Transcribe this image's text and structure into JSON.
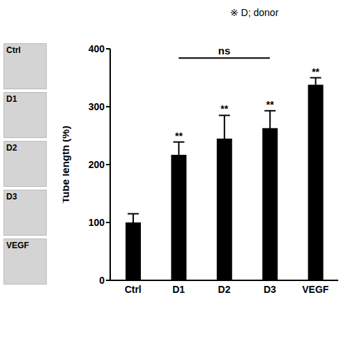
{
  "chart_data": {
    "type": "bar",
    "categories": [
      "Ctrl",
      "D1",
      "D2",
      "D3",
      "VEGF"
    ],
    "values": [
      100,
      217,
      245,
      263,
      338
    ],
    "errors": [
      15,
      22,
      40,
      30,
      12
    ],
    "color": "#000000",
    "y_label": "Tube length (%)",
    "ylim": [
      0,
      400
    ],
    "yticks": [
      0,
      100,
      200,
      300,
      400
    ],
    "grid": false,
    "annotations": {
      "note": "※ D; donor",
      "significance": [
        null,
        "**",
        "**",
        "**",
        "**"
      ],
      "bracket": {
        "text": "ns",
        "from": "D1",
        "to": "D3"
      }
    }
  }
}
